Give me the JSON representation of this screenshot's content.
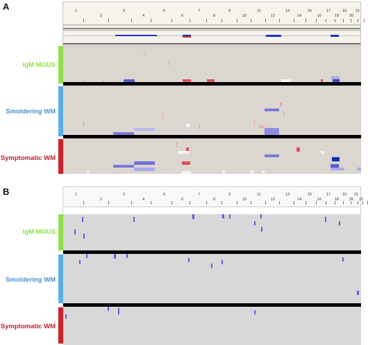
{
  "colors": {
    "igm": "#8fe04a",
    "smold": "#5aaee8",
    "sympt": "#d0202a",
    "igm_text": "#8fe04a",
    "smold_text": "#4f8fc9",
    "sympt_text": "#c0202a",
    "track_a": "#dbd6d0",
    "track_b": "#d8d8d8",
    "loss": "#4040c8",
    "loss_light": "#a8a8e8",
    "loss_dark": "#1030b0",
    "gain": "#e05060",
    "gain_light": "#f0b0b8",
    "neutral": "#f4f4f4",
    "mark_b": "#7a4ee0"
  },
  "panels": [
    {
      "letter": "A",
      "chromosomes": [
        "1",
        "2",
        "3",
        "4",
        "5",
        "6",
        "7",
        "8",
        "9",
        "10",
        "11",
        "12",
        "13",
        "14",
        "15",
        "16",
        "17",
        "18",
        "19",
        "20",
        "21"
      ],
      "groups": [
        {
          "key": "igm",
          "label": "IgM MGUS"
        },
        {
          "key": "smold",
          "label": "Smoldering WM"
        },
        {
          "key": "sympt",
          "label": "Symptomatic WM"
        }
      ]
    },
    {
      "letter": "B",
      "chromosomes": [
        "1",
        "2",
        "3",
        "4",
        "5",
        "6",
        "7",
        "8",
        "9",
        "10",
        "11",
        "12",
        "13",
        "14",
        "15",
        "16",
        "17",
        "18",
        "19",
        "20",
        "21",
        "22"
      ],
      "groups": [
        {
          "key": "igm",
          "label": "IgM MGUS"
        },
        {
          "key": "smold",
          "label": "Smoldering WM"
        },
        {
          "key": "sympt",
          "label": "Symptomatic WM"
        }
      ]
    }
  ]
}
